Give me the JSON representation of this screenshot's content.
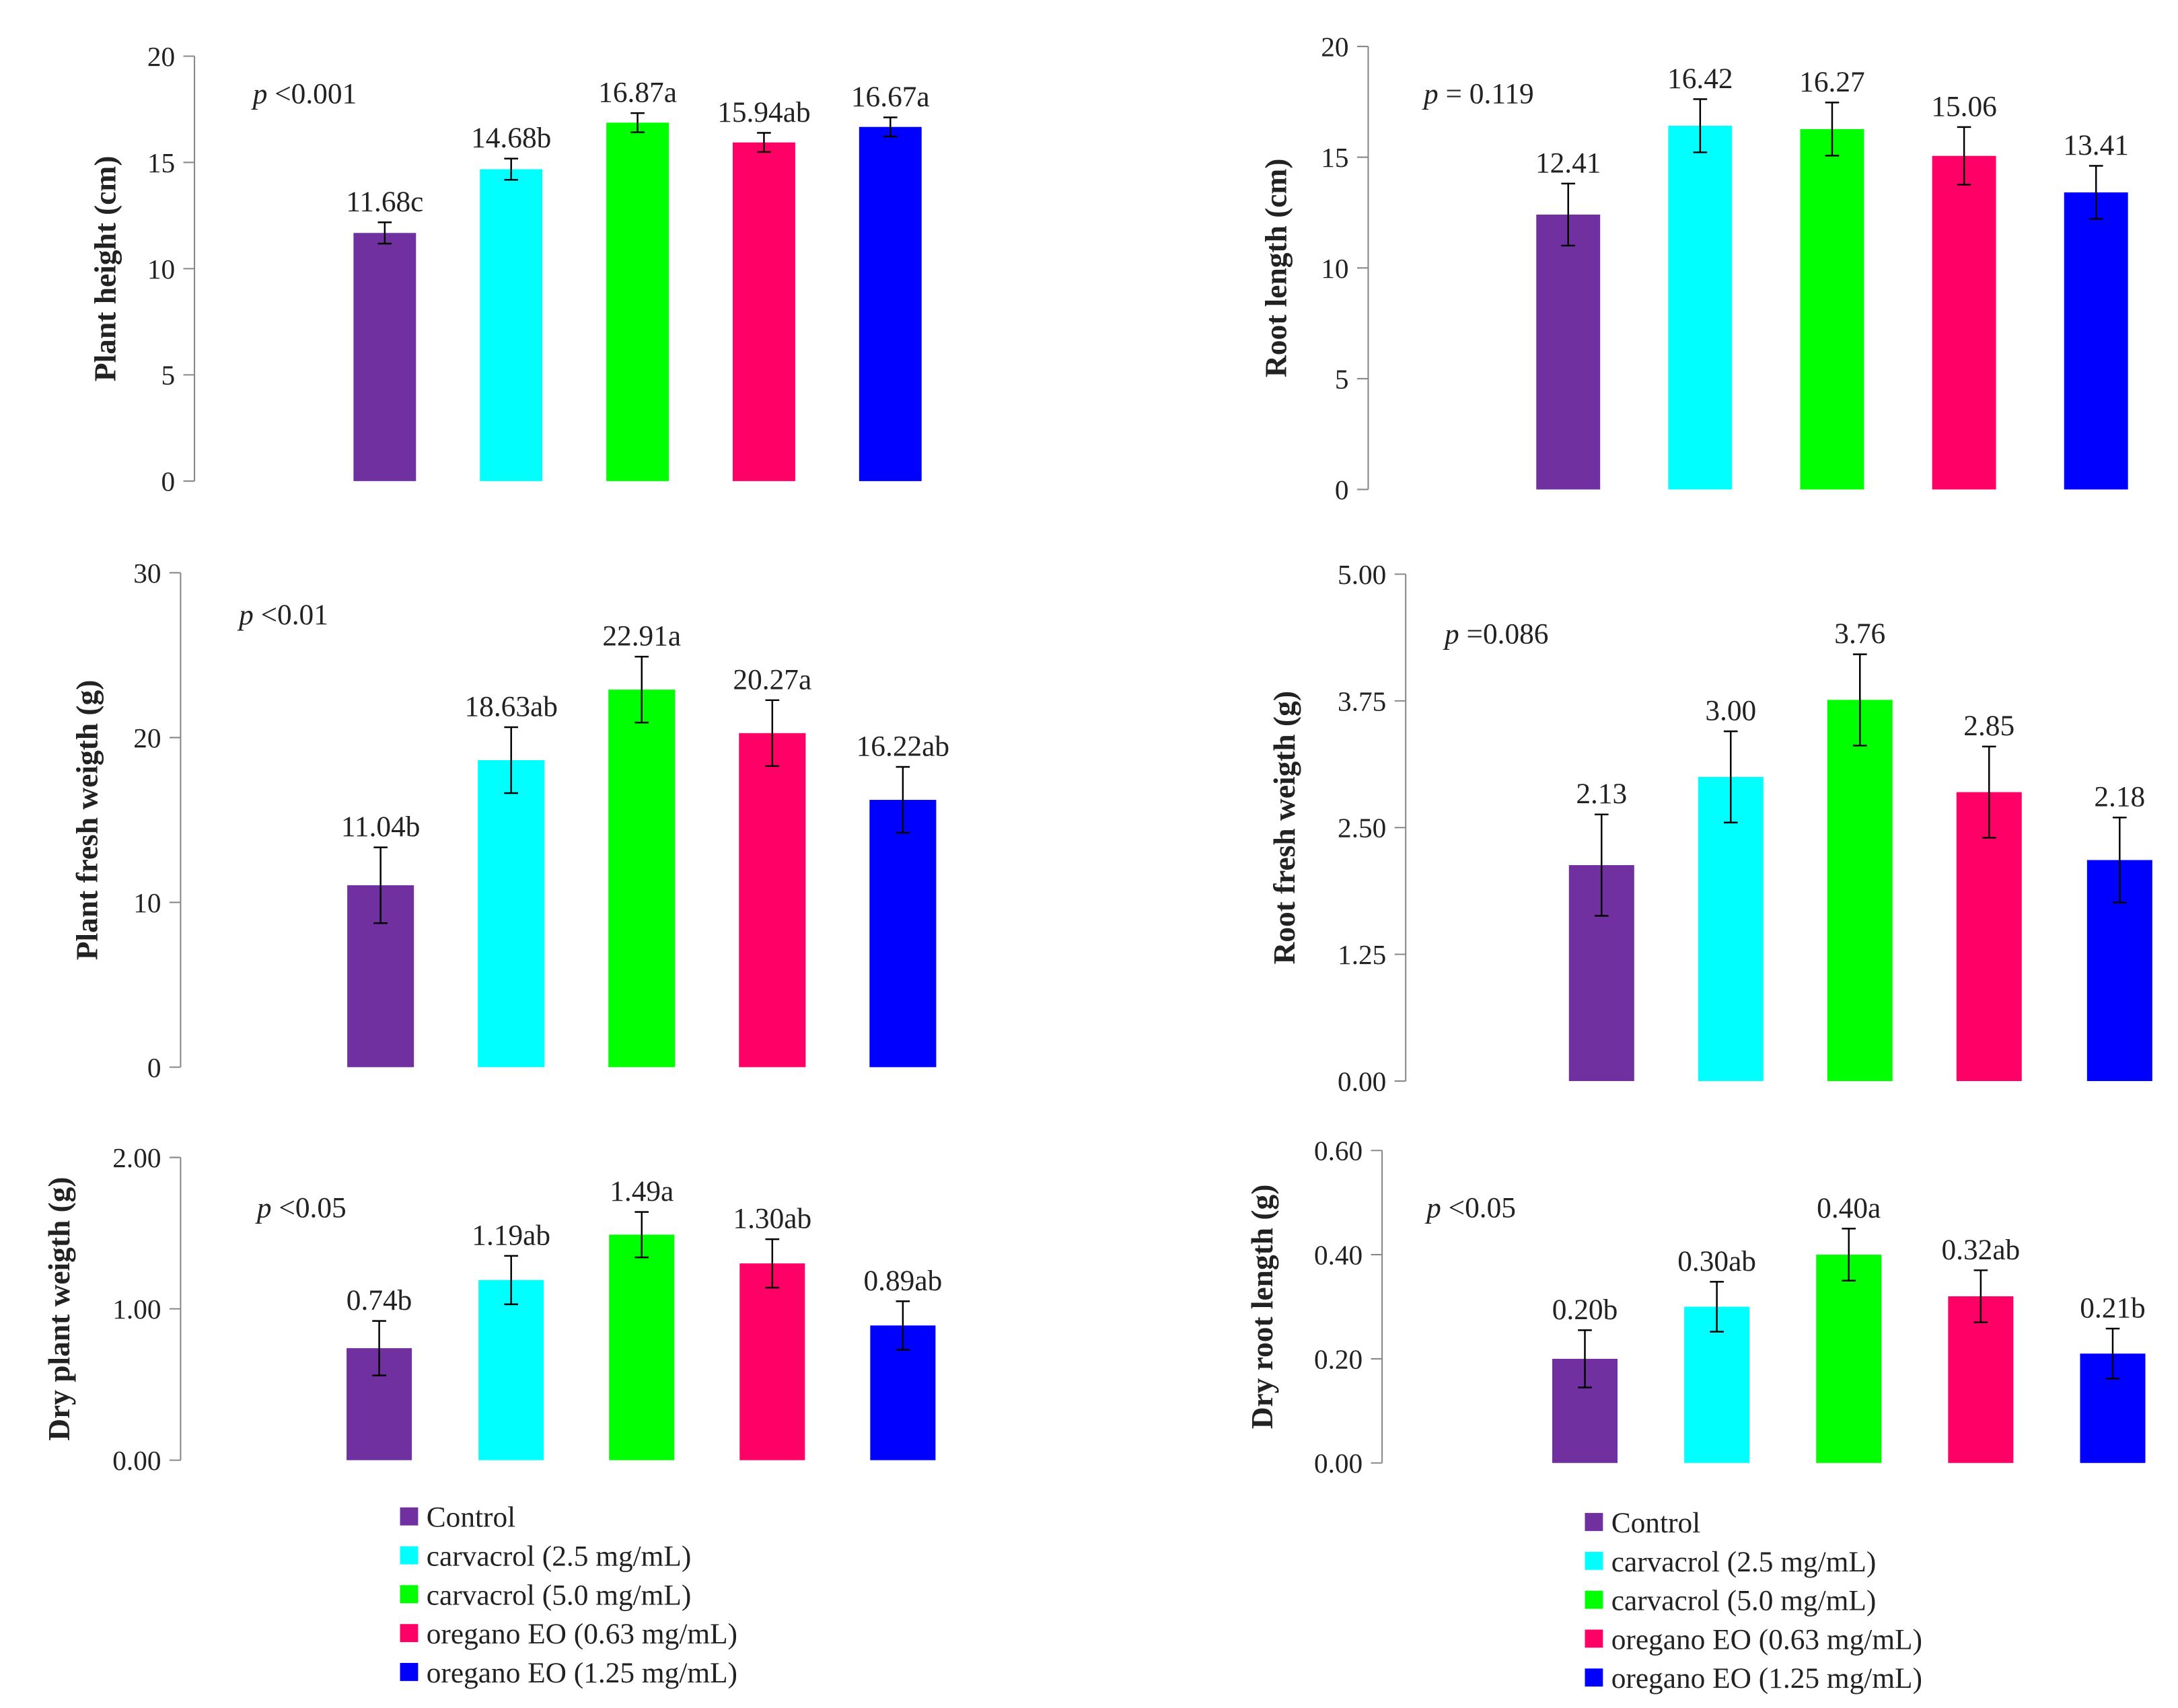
{
  "chart_data": [
    {
      "type": "bar",
      "ylabel": "Plant height (cm)",
      "p_text": "<0.001",
      "p_letter": "p",
      "ylim": [
        0,
        20
      ],
      "yticks": [
        "0",
        "5",
        "10",
        "15",
        "20"
      ],
      "values": [
        11.68,
        14.68,
        16.87,
        15.94,
        16.67
      ],
      "errors": [
        0.5,
        0.5,
        0.45,
        0.45,
        0.45
      ],
      "labels": [
        "11.68c",
        "14.68b",
        "16.87a",
        "15.94ab",
        "16.67a"
      ]
    },
    {
      "type": "bar",
      "ylabel": "Root length (cm)",
      "p_text": "= 0.119",
      "p_letter": "p",
      "ylim": [
        0,
        20
      ],
      "yticks": [
        "0",
        "5",
        "10",
        "15",
        "20"
      ],
      "values": [
        12.41,
        16.42,
        16.27,
        15.06,
        13.41
      ],
      "errors": [
        1.4,
        1.2,
        1.2,
        1.3,
        1.2
      ],
      "labels": [
        "12.41",
        "16.42",
        "16.27",
        "15.06",
        "13.41"
      ]
    },
    {
      "type": "bar",
      "ylabel": "Plant fresh weigth (g)",
      "p_text": "<0.01",
      "p_letter": "p",
      "ylim": [
        0,
        30
      ],
      "yticks": [
        "0",
        "10",
        "20",
        "30"
      ],
      "values": [
        11.04,
        18.63,
        22.91,
        20.27,
        16.22
      ],
      "errors": [
        2.3,
        2.0,
        2.0,
        2.0,
        2.0
      ],
      "labels": [
        "11.04b",
        "18.63ab",
        "22.91a",
        "20.27a",
        "16.22ab"
      ]
    },
    {
      "type": "bar",
      "ylabel": "Root fresh weigth (g)",
      "p_text": "=0.086",
      "p_letter": "p",
      "ylim": [
        0,
        5
      ],
      "yticks": [
        "0.00",
        "1.25",
        "2.50",
        "3.75",
        "5.00"
      ],
      "values": [
        2.13,
        3.0,
        3.76,
        2.85,
        2.18
      ],
      "errors": [
        0.5,
        0.45,
        0.45,
        0.45,
        0.42
      ],
      "labels": [
        "2.13",
        "3.00",
        "3.76",
        "2.85",
        "2.18"
      ]
    },
    {
      "type": "bar",
      "ylabel": "Dry plant weigth (g)",
      "p_text": "<0.05",
      "p_letter": "p",
      "ylim": [
        0,
        2
      ],
      "yticks": [
        "0.00",
        "1.00",
        "2.00"
      ],
      "values": [
        0.74,
        1.19,
        1.49,
        1.3,
        0.89
      ],
      "errors": [
        0.18,
        0.16,
        0.15,
        0.16,
        0.16
      ],
      "labels": [
        "0.74b",
        "1.19ab",
        "1.49a",
        "1.30ab",
        "0.89ab"
      ]
    },
    {
      "type": "bar",
      "ylabel": "Dry root length (g)",
      "p_text": "<0.05",
      "p_letter": "p",
      "ylim": [
        0,
        0.6
      ],
      "yticks": [
        "0.00",
        "0.20",
        "0.40",
        "0.60"
      ],
      "values": [
        0.2,
        0.3,
        0.4,
        0.32,
        0.21
      ],
      "errors": [
        0.055,
        0.048,
        0.05,
        0.05,
        0.048
      ],
      "labels": [
        "0.20b",
        "0.30ab",
        "0.40a",
        "0.32ab",
        "0.21b"
      ]
    }
  ],
  "legend": {
    "items": [
      "Control",
      "carvacrol (2.5 mg/mL)",
      "carvacrol (5.0 mg/mL)",
      "oregano EO (0.63 mg/mL)",
      "oregano EO (1.25 mg/mL)"
    ],
    "colors": [
      "#7030a0",
      "#00ffff",
      "#00ff00",
      "#ff0066",
      "#0000ff"
    ]
  }
}
